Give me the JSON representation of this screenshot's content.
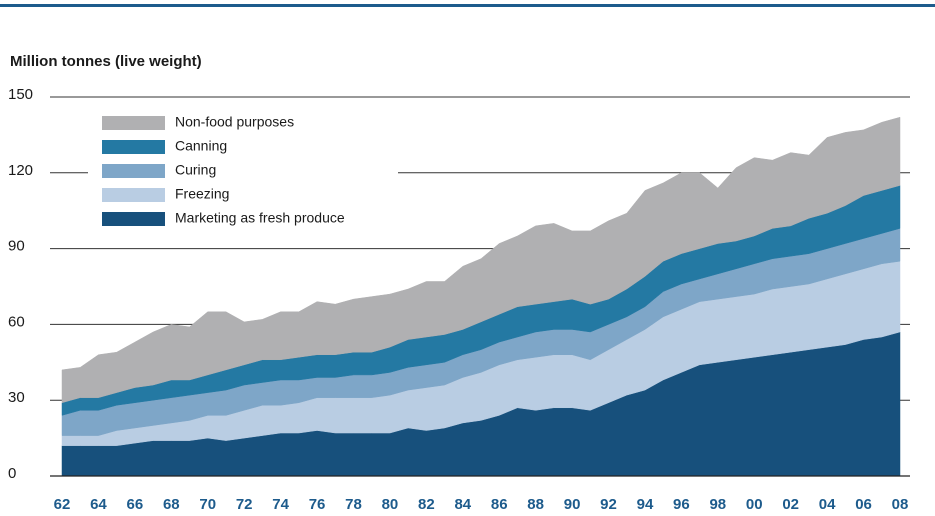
{
  "chart_data": {
    "type": "stacked_area",
    "title": "Million tonnes (live weight)",
    "categories": [
      "62",
      null,
      "64",
      null,
      "66",
      null,
      "68",
      null,
      "70",
      null,
      "72",
      null,
      "74",
      null,
      "76",
      null,
      "78",
      null,
      "80",
      null,
      "82",
      null,
      "84",
      null,
      "86",
      null,
      "88",
      null,
      "90",
      null,
      "92",
      null,
      "94",
      null,
      "96",
      null,
      "98",
      null,
      "00",
      null,
      "02",
      null,
      "04",
      null,
      "06",
      null,
      "08"
    ],
    "series": [
      {
        "name": "Marketing as fresh produce",
        "color": "#17507c",
        "values": [
          12,
          12,
          12,
          12,
          13,
          14,
          14,
          14,
          15,
          14,
          15,
          16,
          17,
          17,
          18,
          17,
          17,
          17,
          17,
          19,
          18,
          19,
          21,
          22,
          24,
          27,
          26,
          27,
          27,
          26,
          29,
          32,
          34,
          38,
          41,
          44,
          45,
          46,
          47,
          48,
          49,
          50,
          51,
          52,
          54,
          55,
          57
        ]
      },
      {
        "name": "Freezing",
        "color": "#b9cde3",
        "values": [
          4,
          4,
          4,
          6,
          6,
          6,
          7,
          8,
          9,
          10,
          11,
          12,
          11,
          12,
          13,
          14,
          14,
          14,
          15,
          15,
          17,
          17,
          18,
          19,
          20,
          19,
          21,
          21,
          21,
          20,
          21,
          22,
          24,
          25,
          25,
          25,
          25,
          25,
          25,
          26,
          26,
          26,
          27,
          28,
          28,
          29,
          28
        ]
      },
      {
        "name": "Curing",
        "color": "#7ea6c8",
        "values": [
          8,
          10,
          10,
          10,
          10,
          10,
          10,
          10,
          9,
          10,
          10,
          9,
          10,
          9,
          8,
          8,
          9,
          9,
          9,
          9,
          9,
          9,
          9,
          9,
          9,
          9,
          10,
          10,
          10,
          11,
          10,
          9,
          9,
          10,
          10,
          9,
          10,
          11,
          12,
          12,
          12,
          12,
          12,
          12,
          12,
          12,
          13
        ]
      },
      {
        "name": "Canning",
        "color": "#2479a3",
        "values": [
          5,
          5,
          5,
          5,
          6,
          6,
          7,
          6,
          7,
          8,
          8,
          9,
          8,
          9,
          9,
          9,
          9,
          9,
          10,
          11,
          11,
          11,
          10,
          11,
          11,
          12,
          11,
          11,
          12,
          11,
          10,
          11,
          12,
          12,
          12,
          12,
          12,
          11,
          11,
          12,
          12,
          14,
          14,
          15,
          17,
          17,
          17
        ]
      },
      {
        "name": "Non-food purposes",
        "color": "#b0b0b2",
        "values": [
          13,
          12,
          17,
          16,
          18,
          21,
          22,
          21,
          25,
          23,
          17,
          16,
          19,
          18,
          21,
          20,
          21,
          22,
          21,
          20,
          22,
          21,
          25,
          25,
          28,
          28,
          31,
          31,
          27,
          29,
          31,
          30,
          34,
          31,
          32,
          30,
          22,
          29,
          31,
          27,
          29,
          25,
          30,
          29,
          26,
          27,
          27
        ]
      }
    ],
    "ylim": [
      0,
      150
    ],
    "yticks": [
      0,
      30,
      60,
      90,
      120,
      150
    ],
    "grid": true,
    "legend": "upper left"
  }
}
